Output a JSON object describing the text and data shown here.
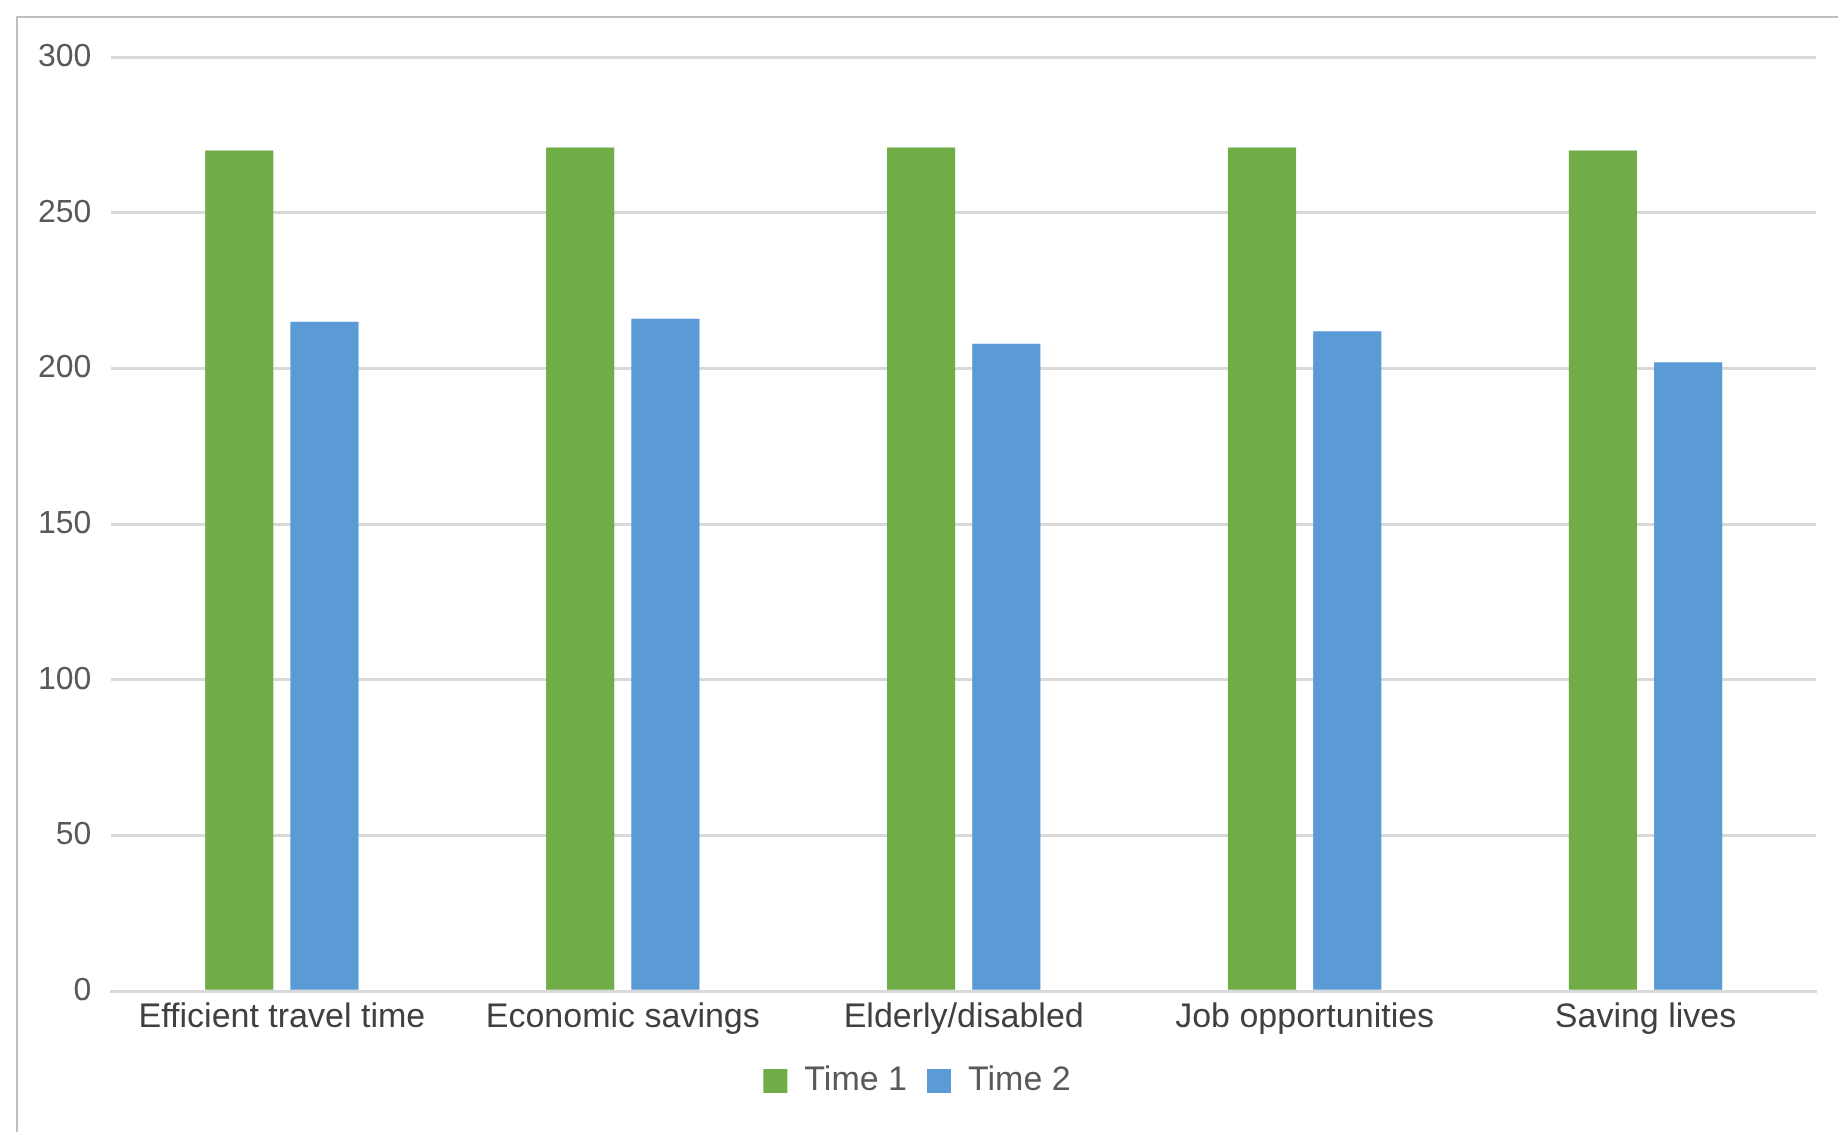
{
  "chart_data": {
    "type": "bar",
    "categories": [
      "Efficient travel time",
      "Economic savings",
      "Elderly/disabled",
      "Job opportunities",
      "Saving lives"
    ],
    "series": [
      {
        "name": "Time 1",
        "color": "#70ad47",
        "values": [
          270,
          271,
          271,
          271,
          270
        ]
      },
      {
        "name": "Time 2",
        "color": "#5b9bd5",
        "values": [
          215,
          216,
          208,
          212,
          202
        ]
      }
    ],
    "ylim": [
      0,
      300
    ],
    "yticks": [
      0,
      50,
      100,
      150,
      200,
      250,
      300
    ],
    "grid": "y",
    "legend": "bottom"
  }
}
